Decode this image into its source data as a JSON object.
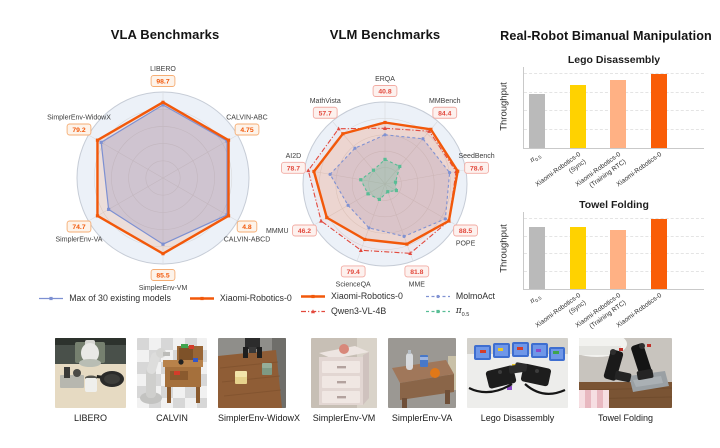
{
  "panels": {
    "vla": {
      "title": "VLA Benchmarks"
    },
    "vlm": {
      "title": "VLM Benchmarks"
    },
    "real_robot": {
      "title": "Real-Robot Bimanual Manipulation"
    }
  },
  "chart_data": [
    {
      "id": "vla_radar",
      "type": "radar",
      "title": "VLA Benchmarks",
      "categories": [
        "LIBERO",
        "CALVIN-ABC",
        "CALVIN-ABCD",
        "SimplerEnv-VM",
        "SimplerEnv-VA",
        "SimplerEnv-WidowX"
      ],
      "legend_position": "bottom",
      "box": {
        "text": "#f2580a",
        "bg": "#fdf3ea",
        "border": "#f5ad74"
      },
      "series": [
        {
          "name": "Max of 30 existing models",
          "color": "#7d90d2",
          "line": "solid",
          "width": 1.2,
          "marker": "square",
          "fill": "rgba(125,144,210,0.30)",
          "values_norm": [
            0.85,
            0.86,
            0.86,
            0.77,
            0.73,
            0.83
          ]
        },
        {
          "name": "Xiaomi-Robotics-0",
          "color": "#f2580a",
          "line": "solid",
          "width": 2.4,
          "marker": "square",
          "fill": "rgba(242,88,10,0.12)",
          "values_norm": [
            0.88,
            0.88,
            0.88,
            0.88,
            0.88,
            0.88
          ],
          "value_labels": [
            "98.7",
            "4.75",
            "4.8",
            "85.5",
            "74.7",
            "79.2"
          ],
          "values": [
            98.7,
            4.75,
            4.8,
            85.5,
            74.7,
            79.2
          ]
        }
      ]
    },
    {
      "id": "vlm_radar",
      "type": "radar",
      "title": "VLM Benchmarks",
      "categories": [
        "ERQA",
        "MMBench",
        "SeedBench",
        "POPE",
        "MME",
        "ScienceQA",
        "MMMU",
        "AI2D",
        "MathVista"
      ],
      "label_side": [
        "",
        "",
        "",
        "",
        "",
        "",
        "left",
        "",
        ""
      ],
      "legend_position": "bottom",
      "legend_order": [
        "Xiaomi-Robotics-0",
        "Qwen3-VL-4B",
        "MolmoAct",
        "π0.5"
      ],
      "box": {
        "text": "#e2493d",
        "bg": "#fdf1ee",
        "border": "#f2aba3"
      },
      "series": [
        {
          "name": "MolmoAct",
          "color": "#8092d2",
          "line": "dashed",
          "width": 1.1,
          "marker": "circle",
          "fill": "rgba(128,146,210,0.20)",
          "values_norm": [
            0.6,
            0.72,
            0.8,
            0.85,
            0.68,
            0.57,
            0.52,
            0.68,
            0.57
          ]
        },
        {
          "name": "Qwen3-VL-4B",
          "color": "#e2493d",
          "line": "dashdot",
          "width": 1.1,
          "marker": "triangle",
          "fill": "rgba(226,73,61,0.05)",
          "values_norm": [
            0.68,
            0.84,
            0.88,
            0.9,
            0.9,
            0.86,
            0.9,
            0.95,
            0.88
          ]
        },
        {
          "name": "Xiaomi-Robotics-0",
          "color": "#f2580a",
          "line": "solid",
          "width": 2.4,
          "marker": "square",
          "fill": "rgba(242,88,10,0.13)",
          "values_norm": [
            0.75,
            0.87,
            0.9,
            0.9,
            0.78,
            0.72,
            0.82,
            0.88,
            0.8
          ],
          "value_labels": [
            "40.8",
            "84.4",
            "78.6",
            "88.5",
            "81.8",
            "79.4",
            "46.2",
            "78.7",
            "57.7"
          ],
          "values": [
            40.8,
            84.4,
            78.6,
            88.5,
            81.8,
            79.4,
            46.2,
            78.7,
            57.7
          ]
        },
        {
          "name": "π0.5",
          "color": "#58bd95",
          "line": "dashed",
          "width": 1.1,
          "marker": "square",
          "fill": "rgba(88,189,149,0.28)",
          "values_norm": [
            0.3,
            0.28,
            0.13,
            0.16,
            0.1,
            0.2,
            0.24,
            0.3,
            0.22
          ]
        }
      ]
    },
    {
      "id": "lego_bar",
      "type": "bar",
      "title": "Lego Disassembly",
      "ylabel": "Throughput",
      "categories": [
        [
          "π0.5"
        ],
        [
          "Xiaomi-Robotics-0",
          "(Sync)"
        ],
        [
          "Xiaomi-Robotics-0",
          "(Training RTC)"
        ],
        [
          "Xiaomi-Robotics-0"
        ]
      ],
      "values_norm": [
        0.73,
        0.85,
        0.92,
        1.0
      ],
      "colors": [
        "#bababa",
        "#ffd200",
        "#ffb184",
        "#f95d07"
      ],
      "grid": "dashed-horizontal",
      "ylim": [
        0,
        1.08
      ]
    },
    {
      "id": "towel_bar",
      "type": "bar",
      "title": "Towel Folding",
      "ylabel": "Throughput",
      "categories": [
        [
          "π0.5"
        ],
        [
          "Xiaomi-Robotics-0",
          "(Sync)"
        ],
        [
          "Xiaomi-Robotics-0",
          "(Training RTC)"
        ],
        [
          "Xiaomi-Robotics-0"
        ]
      ],
      "values_norm": [
        0.88,
        0.88,
        0.85,
        1.0
      ],
      "colors": [
        "#bababa",
        "#ffd200",
        "#ffb184",
        "#f95d07"
      ],
      "grid": "dashed-horizontal",
      "ylim": [
        0,
        1.08
      ]
    }
  ],
  "thumbnails": [
    {
      "caption": "LIBERO"
    },
    {
      "caption": "CALVIN"
    },
    {
      "caption": "SimplerEnv-WidowX"
    },
    {
      "caption": "SimplerEnv-VM"
    },
    {
      "caption": "SimplerEnv-VA"
    },
    {
      "caption": "Lego Disassembly"
    },
    {
      "caption": "Towel Folding"
    }
  ]
}
